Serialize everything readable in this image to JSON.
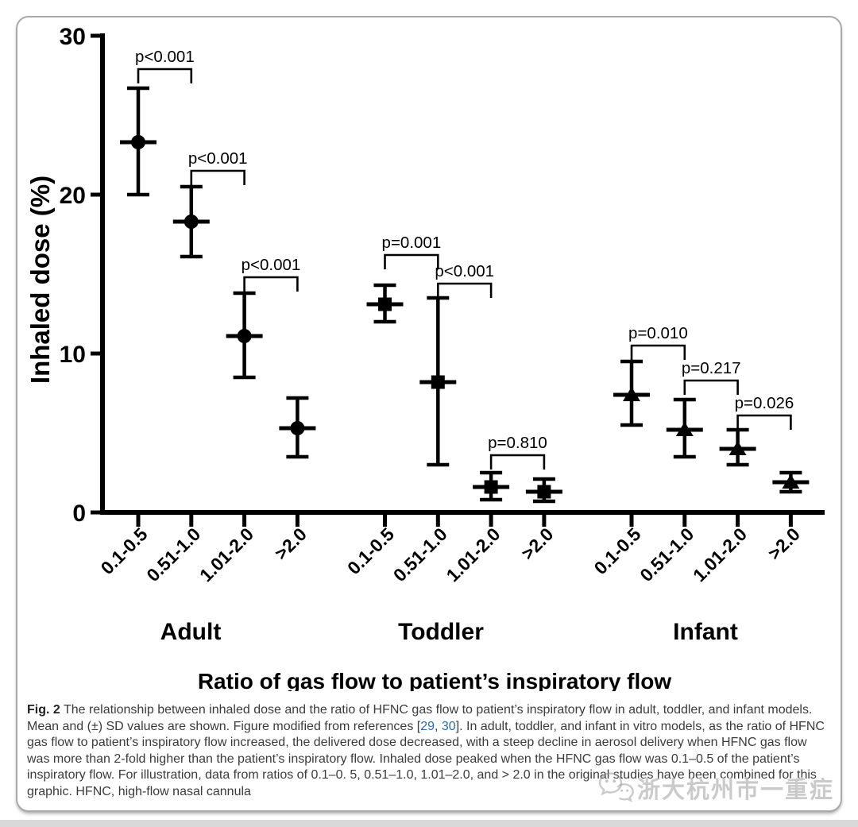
{
  "colors": {
    "data_ink": "#000000",
    "link": "#2b6caa",
    "caption_text": "#3b3b3b",
    "watermark_gray": "#919191",
    "card_border": "#a9a9a9",
    "page_strip": "#d9d9d9"
  },
  "figure": {
    "watermark": {
      "icon": "wechat-icon",
      "text": "浙大杭州市一重症"
    },
    "caption": {
      "segments": [
        {
          "style": "bold",
          "text": "Fig. 2"
        },
        {
          "style": "normal",
          "text": " The relationship between inhaled dose and the ratio of HFNC gas flow to patient’s inspiratory flow in adult, toddler, and infant models. Mean and (±) SD values are shown. Figure modified from references ["
        },
        {
          "style": "link",
          "text": "29"
        },
        {
          "style": "normal",
          "text": ", "
        },
        {
          "style": "link",
          "text": "30"
        },
        {
          "style": "normal",
          "text": "]. In adult, toddler, and infant in vitro models, as the ratio of HFNC gas flow to patient’s inspiratory flow increased, the delivered dose decreased, with a steep decline in aerosol delivery when HFNC gas flow was more than 2-fold higher than the patient’s inspiratory flow. Inhaled dose peaked when the HFNC gas flow was 0.1–0.5 of the patient’s inspiratory flow. For illustration, data from ratios of 0.1–0. 5, 0.51–1.0, 1.01–2.0, and > 2.0 in the original studies have been combined for this graphic. HFNC, high-flow nasal cannula"
        }
      ]
    }
  },
  "chart_data": {
    "type": "scatter",
    "title": "",
    "xlabel": "Ratio of gas flow to patient’s inspiratory flow",
    "ylabel": "Inhaled dose (%)",
    "ylim": [
      0,
      30
    ],
    "yticks": [
      0,
      10,
      20,
      30
    ],
    "grid": false,
    "legend": "none",
    "error_bars": "mean ± SD",
    "categories": [
      "0.1-0.5",
      "0.51-1.0",
      "1.01-2.0",
      ">2.0"
    ],
    "groups": [
      {
        "name": "Adult",
        "marker": "circle",
        "points": [
          {
            "category": "0.1-0.5",
            "mean": 23.3,
            "upper": 26.7,
            "lower": 20.0
          },
          {
            "category": "0.51-1.0",
            "mean": 18.3,
            "upper": 20.5,
            "lower": 16.1
          },
          {
            "category": "1.01-2.0",
            "mean": 11.1,
            "upper": 13.8,
            "lower": 8.5
          },
          {
            "category": ">2.0",
            "mean": 5.3,
            "upper": 7.2,
            "lower": 3.5
          }
        ],
        "comparisons": [
          {
            "label": "p<0.001",
            "between": [
              0,
              1
            ],
            "bracket_y": 27.9
          },
          {
            "label": "p<0.001",
            "between": [
              1,
              2
            ],
            "bracket_y": 21.5
          },
          {
            "label": "p<0.001",
            "between": [
              2,
              3
            ],
            "bracket_y": 14.8
          }
        ]
      },
      {
        "name": "Toddler",
        "marker": "square",
        "points": [
          {
            "category": "0.1-0.5",
            "mean": 13.1,
            "upper": 14.3,
            "lower": 12.0
          },
          {
            "category": "0.51-1.0",
            "mean": 8.2,
            "upper": 13.5,
            "lower": 3.0
          },
          {
            "category": "1.01-2.0",
            "mean": 1.6,
            "upper": 2.5,
            "lower": 0.8
          },
          {
            "category": ">2.0",
            "mean": 1.3,
            "upper": 2.1,
            "lower": 0.7
          }
        ],
        "comparisons": [
          {
            "label": "p=0.001",
            "between": [
              0,
              1
            ],
            "bracket_y": 16.2
          },
          {
            "label": "p<0.001",
            "between": [
              1,
              2
            ],
            "bracket_y": 14.4
          },
          {
            "label": "p=0.810",
            "between": [
              2,
              3
            ],
            "bracket_y": 3.6
          }
        ]
      },
      {
        "name": "Infant",
        "marker": "triangle",
        "points": [
          {
            "category": "0.1-0.5",
            "mean": 7.4,
            "upper": 9.5,
            "lower": 5.5
          },
          {
            "category": "0.51-1.0",
            "mean": 5.2,
            "upper": 7.1,
            "lower": 3.5
          },
          {
            "category": "1.01-2.0",
            "mean": 4.0,
            "upper": 5.2,
            "lower": 3.0
          },
          {
            "category": ">2.0",
            "mean": 1.9,
            "upper": 2.5,
            "lower": 1.3
          }
        ],
        "comparisons": [
          {
            "label": "p=0.010",
            "between": [
              0,
              1
            ],
            "bracket_y": 10.5
          },
          {
            "label": "p=0.217",
            "between": [
              1,
              2
            ],
            "bracket_y": 8.3
          },
          {
            "label": "p=0.026",
            "between": [
              2,
              3
            ],
            "bracket_y": 6.1
          }
        ]
      }
    ]
  }
}
